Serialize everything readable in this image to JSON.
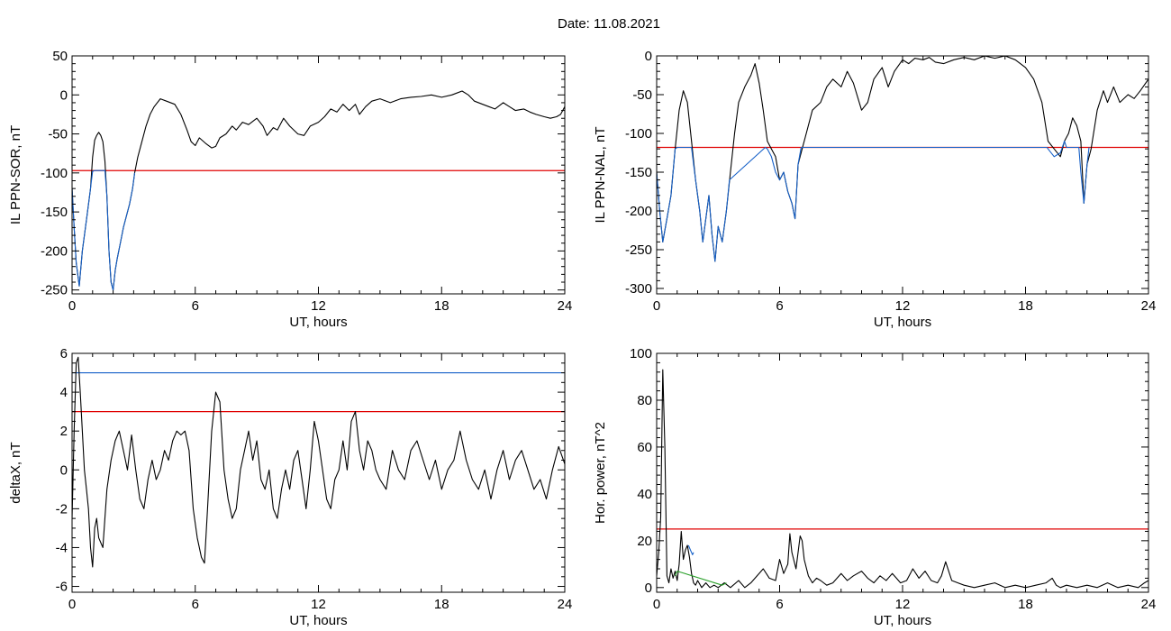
{
  "page_title": "Date:  11.08.2021",
  "chart_data": [
    {
      "type": "line",
      "ylabel": "IL PPN-SOR, nT",
      "xlabel": "UT, hours",
      "xlim": [
        0,
        24
      ],
      "ylim": [
        -255,
        50
      ],
      "xticks": [
        0,
        6,
        12,
        18,
        24
      ],
      "yticks": [
        50,
        0,
        -50,
        -100,
        -150,
        -200,
        -250
      ],
      "threshold": -97,
      "threshold_color": "#e00000",
      "series": [
        {
          "color": "#000000",
          "x": [
            0,
            0.1,
            0.2,
            0.35,
            0.5,
            0.7,
            0.9,
            1.0,
            1.1,
            1.2,
            1.3,
            1.4,
            1.5,
            1.6,
            1.7,
            1.8,
            1.9,
            2.0,
            2.1,
            2.2,
            2.35,
            2.5,
            2.65,
            2.8,
            2.95,
            3.05,
            3.2,
            3.4,
            3.6,
            3.8,
            4.0,
            4.3,
            4.6,
            5.0,
            5.3,
            5.6,
            5.8,
            6.0,
            6.2,
            6.5,
            6.8,
            7.0,
            7.2,
            7.5,
            7.8,
            8.0,
            8.3,
            8.6,
            9.0,
            9.3,
            9.5,
            9.8,
            10.0,
            10.3,
            10.6,
            11.0,
            11.3,
            11.6,
            12.0,
            12.3,
            12.6,
            12.9,
            13.2,
            13.5,
            13.8,
            14.0,
            14.3,
            14.6,
            15.0,
            15.5,
            16.0,
            16.5,
            17.0,
            17.5,
            18.0,
            18.5,
            19.0,
            19.3,
            19.6,
            20.0,
            20.3,
            20.6,
            21.0,
            21.3,
            21.6,
            22.0,
            22.3,
            22.6,
            23.0,
            23.3,
            23.6,
            23.8,
            24.0
          ],
          "y": [
            -120,
            -170,
            -215,
            -245,
            -200,
            -160,
            -120,
            -80,
            -58,
            -52,
            -48,
            -52,
            -60,
            -85,
            -130,
            -200,
            -240,
            -250,
            -225,
            -210,
            -190,
            -170,
            -155,
            -140,
            -120,
            -100,
            -80,
            -60,
            -40,
            -25,
            -15,
            -5,
            -8,
            -12,
            -25,
            -45,
            -60,
            -65,
            -55,
            -62,
            -68,
            -66,
            -55,
            -50,
            -40,
            -45,
            -35,
            -38,
            -30,
            -40,
            -52,
            -42,
            -45,
            -30,
            -40,
            -50,
            -52,
            -40,
            -35,
            -28,
            -18,
            -22,
            -12,
            -20,
            -12,
            -25,
            -15,
            -8,
            -5,
            -10,
            -5,
            -3,
            -2,
            0,
            -3,
            0,
            5,
            0,
            -8,
            -12,
            -15,
            -18,
            -10,
            -15,
            -20,
            -18,
            -22,
            -25,
            -28,
            -30,
            -28,
            -25,
            -15
          ]
        },
        {
          "color": "#1560c8",
          "x": [
            0,
            0.1,
            0.2,
            0.35,
            0.5,
            0.7,
            0.85,
            1.0,
            1.1,
            1.6,
            1.7,
            1.8,
            1.9,
            2.0,
            2.1,
            2.2,
            2.35,
            2.5,
            2.65,
            2.8,
            2.95,
            3.05
          ],
          "y": [
            -120,
            -170,
            -215,
            -245,
            -200,
            -160,
            -130,
            -98,
            -97,
            -97,
            -130,
            -200,
            -240,
            -250,
            -225,
            -210,
            -190,
            -170,
            -155,
            -140,
            -120,
            -100
          ]
        }
      ]
    },
    {
      "type": "line",
      "ylabel": "IL PPN-NAL, nT",
      "xlabel": "UT, hours",
      "xlim": [
        0,
        24
      ],
      "ylim": [
        -307,
        0
      ],
      "xticks": [
        0,
        6,
        12,
        18,
        24
      ],
      "yticks": [
        0,
        -50,
        -100,
        -150,
        -200,
        -250,
        -300
      ],
      "threshold": -118,
      "threshold_color": "#e00000",
      "series": [
        {
          "color": "#000000",
          "x": [
            0,
            0.15,
            0.3,
            0.5,
            0.7,
            0.9,
            1.1,
            1.3,
            1.5,
            1.7,
            1.9,
            2.1,
            2.25,
            2.4,
            2.55,
            2.7,
            2.85,
            3.0,
            3.2,
            3.4,
            3.6,
            3.8,
            4.0,
            4.3,
            4.6,
            4.8,
            5.0,
            5.2,
            5.4,
            5.6,
            5.8,
            6.0,
            6.2,
            6.4,
            6.6,
            6.75,
            6.9,
            7.1,
            7.3,
            7.6,
            8.0,
            8.3,
            8.6,
            9.0,
            9.3,
            9.6,
            10.0,
            10.3,
            10.6,
            11.0,
            11.3,
            11.6,
            12.0,
            12.3,
            12.6,
            13.0,
            13.3,
            13.6,
            14.0,
            14.5,
            15.0,
            15.5,
            16.0,
            16.5,
            17.0,
            17.5,
            18.0,
            18.4,
            18.8,
            19.1,
            19.4,
            19.7,
            19.9,
            20.1,
            20.3,
            20.5,
            20.7,
            20.85,
            21.0,
            21.2,
            21.5,
            21.8,
            22.0,
            22.3,
            22.6,
            23.0,
            23.3,
            23.6,
            24.0
          ],
          "y": [
            -150,
            -200,
            -240,
            -210,
            -180,
            -120,
            -70,
            -45,
            -60,
            -110,
            -160,
            -200,
            -240,
            -210,
            -180,
            -230,
            -265,
            -220,
            -240,
            -200,
            -150,
            -100,
            -60,
            -40,
            -25,
            -10,
            -35,
            -70,
            -110,
            -120,
            -130,
            -160,
            -150,
            -175,
            -190,
            -210,
            -140,
            -120,
            -100,
            -70,
            -60,
            -40,
            -30,
            -40,
            -20,
            -35,
            -70,
            -60,
            -30,
            -15,
            -40,
            -20,
            -5,
            -10,
            -3,
            -5,
            -2,
            -8,
            -10,
            -5,
            -2,
            -5,
            0,
            -3,
            0,
            -5,
            -15,
            -30,
            -60,
            -110,
            -120,
            -130,
            -110,
            -100,
            -80,
            -90,
            -110,
            -190,
            -140,
            -120,
            -70,
            -45,
            -60,
            -40,
            -60,
            -50,
            -55,
            -45,
            -30
          ]
        },
        {
          "color": "#1560c8",
          "x": [
            0,
            0.15,
            0.3,
            0.5,
            0.7,
            0.9,
            1.0,
            1.7,
            1.8,
            1.9,
            2.1,
            2.25,
            2.4,
            2.55,
            2.7,
            2.85,
            3.0,
            3.2,
            3.4,
            3.55,
            5.3,
            5.4,
            5.6,
            5.8,
            6.0,
            6.2,
            6.4,
            6.6,
            6.75,
            6.9,
            7.05,
            19.05,
            19.1,
            19.4,
            19.7,
            19.9,
            20.0,
            20.6,
            20.7,
            20.85,
            21.0,
            21.1
          ],
          "y": [
            -150,
            -200,
            -240,
            -210,
            -180,
            -120,
            -118,
            -118,
            -140,
            -160,
            -200,
            -240,
            -210,
            -180,
            -230,
            -265,
            -220,
            -240,
            -200,
            -160,
            -118,
            -120,
            -130,
            -150,
            -160,
            -150,
            -175,
            -190,
            -210,
            -140,
            -118,
            -118,
            -120,
            -130,
            -125,
            -110,
            -118,
            -118,
            -150,
            -190,
            -140,
            -118
          ]
        }
      ]
    },
    {
      "type": "line",
      "ylabel": "deltaX, nT",
      "xlabel": "UT, hours",
      "xlim": [
        0,
        24
      ],
      "ylim": [
        -6.3,
        6
      ],
      "xticks": [
        0,
        6,
        12,
        18,
        24
      ],
      "yticks": [
        6,
        4,
        2,
        0,
        -2,
        -4,
        -6
      ],
      "thresholds": [
        {
          "value": 5.0,
          "color": "#1560c8"
        },
        {
          "value": 3.0,
          "color": "#e00000"
        }
      ],
      "series": [
        {
          "color": "#000000",
          "x": [
            0,
            0.1,
            0.2,
            0.3,
            0.4,
            0.5,
            0.6,
            0.7,
            0.8,
            0.9,
            1.0,
            1.1,
            1.2,
            1.3,
            1.5,
            1.7,
            1.9,
            2.1,
            2.3,
            2.5,
            2.7,
            2.9,
            3.1,
            3.3,
            3.5,
            3.7,
            3.9,
            4.1,
            4.3,
            4.5,
            4.7,
            4.9,
            5.1,
            5.3,
            5.5,
            5.7,
            5.9,
            6.1,
            6.3,
            6.45,
            6.6,
            6.8,
            7.0,
            7.2,
            7.4,
            7.6,
            7.8,
            8.0,
            8.2,
            8.4,
            8.6,
            8.8,
            9.0,
            9.2,
            9.4,
            9.6,
            9.8,
            10.0,
            10.2,
            10.4,
            10.6,
            10.8,
            11.0,
            11.2,
            11.4,
            11.6,
            11.8,
            12.0,
            12.2,
            12.4,
            12.6,
            12.8,
            13.0,
            13.2,
            13.4,
            13.6,
            13.8,
            14.0,
            14.2,
            14.4,
            14.6,
            14.8,
            15.0,
            15.3,
            15.6,
            15.9,
            16.2,
            16.5,
            16.8,
            17.1,
            17.4,
            17.7,
            18.0,
            18.3,
            18.6,
            18.9,
            19.2,
            19.5,
            19.8,
            20.1,
            20.4,
            20.7,
            21.0,
            21.3,
            21.6,
            21.9,
            22.2,
            22.5,
            22.8,
            23.1,
            23.4,
            23.7,
            24.0
          ],
          "y": [
            -2.5,
            2,
            5.5,
            5.8,
            4,
            2,
            0,
            -1,
            -2,
            -4,
            -5,
            -3,
            -2.5,
            -3.5,
            -4,
            -1,
            0.5,
            1.5,
            2,
            1,
            0,
            1.8,
            0,
            -1.5,
            -2,
            -0.5,
            0.5,
            -0.5,
            0,
            1,
            0.5,
            1.5,
            2,
            1.8,
            2,
            1,
            -2,
            -3.5,
            -4.5,
            -4.8,
            -2,
            2,
            4,
            3.5,
            0,
            -1.5,
            -2.5,
            -2,
            0,
            1,
            2,
            0.5,
            1.5,
            -0.5,
            -1,
            0,
            -2,
            -2.5,
            -1,
            0,
            -1,
            0.5,
            1,
            -0.5,
            -2,
            0,
            2.5,
            1.5,
            0,
            -1.5,
            -2,
            -0.5,
            0,
            1.5,
            0,
            2.5,
            3,
            1,
            0,
            1.5,
            1,
            0,
            -0.5,
            -1,
            1,
            0,
            -0.5,
            1,
            1.5,
            0.5,
            -0.5,
            0.5,
            -1,
            0,
            0.5,
            2,
            0.5,
            -0.5,
            -1,
            0,
            -1.5,
            0,
            1,
            -0.5,
            0.5,
            1,
            0,
            -1,
            -0.5,
            -1.5,
            0,
            1.2,
            0.3
          ]
        }
      ]
    },
    {
      "type": "line",
      "ylabel": "Hor. power, nT^2",
      "xlabel": "UT, hours",
      "xlim": [
        0,
        24
      ],
      "ylim": [
        -2,
        100
      ],
      "xticks": [
        0,
        6,
        12,
        18,
        24
      ],
      "yticks": [
        100,
        80,
        60,
        40,
        20,
        0
      ],
      "threshold": 25,
      "threshold_color": "#e00000",
      "series": [
        {
          "color": "#000000",
          "x": [
            0,
            0.1,
            0.2,
            0.3,
            0.4,
            0.5,
            0.6,
            0.7,
            0.8,
            0.9,
            1.0,
            1.1,
            1.2,
            1.3,
            1.4,
            1.5,
            1.6,
            1.7,
            1.8,
            1.9,
            2.0,
            2.2,
            2.4,
            2.6,
            2.8,
            3.0,
            3.3,
            3.6,
            4.0,
            4.3,
            4.6,
            4.9,
            5.2,
            5.5,
            5.8,
            6.0,
            6.2,
            6.4,
            6.5,
            6.6,
            6.8,
            7.0,
            7.1,
            7.2,
            7.4,
            7.6,
            7.8,
            8.0,
            8.3,
            8.6,
            9.0,
            9.3,
            9.6,
            10.0,
            10.3,
            10.6,
            10.9,
            11.2,
            11.5,
            11.7,
            11.9,
            12.2,
            12.5,
            12.8,
            13.1,
            13.4,
            13.7,
            13.9,
            14.1,
            14.4,
            14.7,
            15.0,
            15.5,
            16.0,
            16.5,
            17.0,
            17.5,
            18.0,
            18.5,
            19.0,
            19.3,
            19.5,
            19.7,
            20.0,
            20.5,
            21.0,
            21.5,
            22.0,
            22.5,
            23.0,
            23.5,
            23.8,
            24.0
          ],
          "y": [
            5,
            15,
            30,
            93,
            60,
            5,
            2,
            8,
            4,
            7,
            3,
            10,
            24,
            12,
            16,
            18,
            13,
            6,
            2,
            1,
            3,
            0,
            2,
            0,
            1,
            0,
            2,
            0,
            3,
            0,
            2,
            5,
            8,
            4,
            3,
            12,
            6,
            10,
            23,
            15,
            8,
            22,
            20,
            12,
            5,
            2,
            4,
            3,
            1,
            2,
            6,
            3,
            5,
            7,
            4,
            2,
            5,
            3,
            6,
            4,
            2,
            3,
            8,
            4,
            7,
            3,
            2,
            5,
            11,
            3,
            2,
            1,
            0,
            1,
            2,
            0,
            1,
            0,
            1,
            2,
            4,
            1,
            0,
            1,
            0,
            1,
            0,
            2,
            0,
            1,
            0,
            2,
            3
          ]
        },
        {
          "color": "#1560c8",
          "x": [
            1.55,
            1.65,
            1.75,
            1.8
          ],
          "y": [
            18,
            16,
            14,
            15
          ]
        },
        {
          "color": "#2aa02a",
          "x": [
            0.9,
            1.0,
            3.2,
            3.4
          ],
          "y": [
            5,
            7,
            1,
            2
          ]
        }
      ]
    }
  ]
}
